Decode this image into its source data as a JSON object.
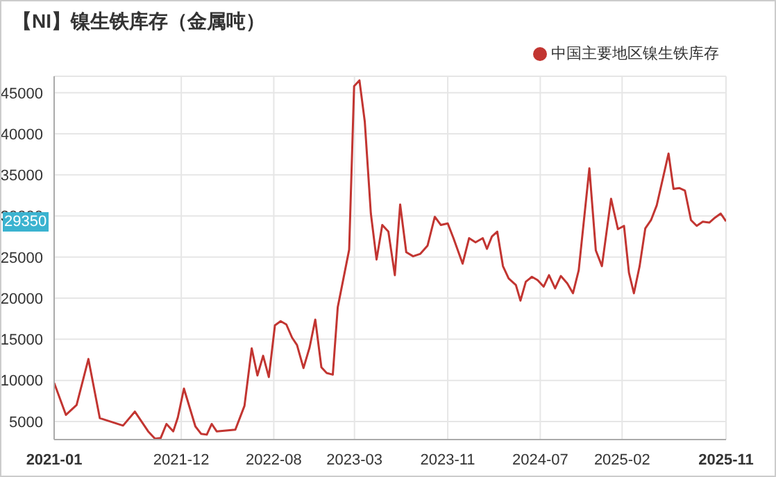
{
  "chart_data": {
    "type": "line",
    "title": "【NI】镍生铁库存（金属吨）",
    "x": [
      "2021-01-01",
      "2021-02-01",
      "2021-03-01",
      "2021-04-01",
      "2021-05-01",
      "2021-07-01",
      "2021-08-01",
      "2021-09-05",
      "2021-09-23",
      "2021-10-08",
      "2021-10-23",
      "2021-11-10",
      "2021-11-22",
      "2021-12-08",
      "2022-01-07",
      "2022-01-22",
      "2022-02-06",
      "2022-02-19",
      "2022-03-04",
      "2022-04-22",
      "2022-05-16",
      "2022-06-04",
      "2022-06-19",
      "2022-07-04",
      "2022-07-19",
      "2022-08-04",
      "2022-08-19",
      "2022-09-03",
      "2022-09-18",
      "2022-10-01",
      "2022-10-18",
      "2022-11-03",
      "2022-11-18",
      "2022-12-04",
      "2022-12-18",
      "2023-01-03",
      "2023-01-16",
      "2023-02-15",
      "2023-02-28",
      "2023-03-14",
      "2023-03-28",
      "2023-04-13",
      "2023-04-28",
      "2023-05-13",
      "2023-05-29",
      "2023-06-15",
      "2023-06-29",
      "2023-07-15",
      "2023-08-02",
      "2023-08-21",
      "2023-09-09",
      "2023-09-28",
      "2023-10-14",
      "2023-11-01",
      "2023-11-16",
      "2023-12-10",
      "2023-12-27",
      "2024-01-13",
      "2024-02-01",
      "2024-02-12",
      "2024-02-25",
      "2024-03-10",
      "2024-03-25",
      "2024-04-09",
      "2024-04-28",
      "2024-05-10",
      "2024-05-24",
      "2024-06-09",
      "2024-06-24",
      "2024-07-10",
      "2024-07-24",
      "2024-08-09",
      "2024-08-24",
      "2024-09-10",
      "2024-09-25",
      "2024-10-10",
      "2024-11-07",
      "2024-11-24",
      "2024-12-10",
      "2025-01-03",
      "2025-01-21",
      "2025-02-06",
      "2025-02-19",
      "2025-03-04",
      "2025-03-19",
      "2025-04-03",
      "2025-04-18",
      "2025-05-03",
      "2025-06-03",
      "2025-06-16",
      "2025-07-01",
      "2025-07-16",
      "2025-08-01",
      "2025-08-16",
      "2025-09-01",
      "2025-09-18",
      "2025-10-03",
      "2025-10-18",
      "2025-11-01"
    ],
    "series": [
      {
        "name": "中国主要地区镍生铁库存",
        "color": "#c23531",
        "values": [
          9700,
          5800,
          7000,
          12600,
          5400,
          4500,
          6200,
          3800,
          2900,
          3000,
          4700,
          3800,
          5500,
          9000,
          4400,
          3500,
          3400,
          4700,
          3800,
          4000,
          6900,
          13900,
          10600,
          13000,
          10400,
          16700,
          17200,
          16800,
          15200,
          14300,
          11500,
          14000,
          17400,
          11600,
          10900,
          10700,
          18900,
          25900,
          45800,
          46500,
          41500,
          30300,
          24700,
          28900,
          28100,
          22800,
          31400,
          25600,
          25100,
          25400,
          26400,
          29900,
          28900,
          29100,
          27300,
          24200,
          27300,
          26800,
          27300,
          26000,
          27500,
          28100,
          23900,
          22400,
          21600,
          19700,
          22000,
          22600,
          22200,
          21400,
          22800,
          21200,
          22700,
          21800,
          20600,
          23400,
          35800,
          25800,
          23900,
          32100,
          28400,
          28800,
          23100,
          20600,
          23900,
          28500,
          29500,
          31300,
          37600,
          33300,
          33400,
          33100,
          29500,
          28800,
          29300,
          29200,
          29800,
          30300,
          29350
        ]
      }
    ],
    "xlim": [
      "2021-01",
      "2025-11"
    ],
    "xticks": [
      "2021-01",
      "2021-12",
      "2022-08",
      "2023-03",
      "2023-11",
      "2024-07",
      "2025-02",
      "2025-11"
    ],
    "ylim": [
      2800,
      47000
    ],
    "yticks": [
      5000,
      10000,
      15000,
      20000,
      25000,
      30000,
      35000,
      40000,
      45000
    ],
    "grid": true,
    "legend": "top right",
    "marker": "none",
    "line_style": "solid",
    "annotations": [
      "29350"
    ]
  }
}
